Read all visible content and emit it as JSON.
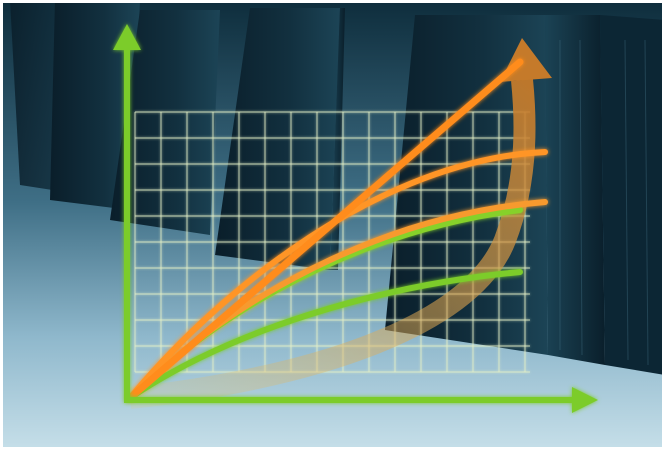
{
  "illustration": {
    "subject": "growth-graph-over-server-racks",
    "colors": {
      "axis": "#7ccc2a",
      "grid": "#d8e6b0",
      "sky_top": "#0e2d3c",
      "sky_bottom": "#b8d6e4",
      "server": "#0b2230",
      "orange": "#ff8c1a",
      "amber": "#d98a2a",
      "green": "#86d12b"
    },
    "curves": [
      {
        "name": "orange-line-top",
        "color": "#ff8c1a"
      },
      {
        "name": "orange-line-middle",
        "color": "#ff9526"
      },
      {
        "name": "orange-line-lower",
        "color": "#f79a2e"
      },
      {
        "name": "green-line-upper",
        "color": "#86d12b"
      },
      {
        "name": "green-line-lower",
        "color": "#7ccc2a"
      },
      {
        "name": "amber-arrow-curve",
        "color": "#d98a2a"
      }
    ]
  }
}
